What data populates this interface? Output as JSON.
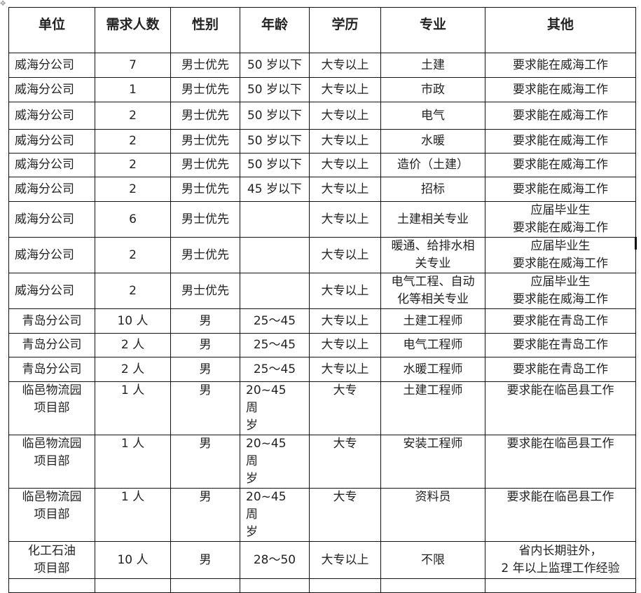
{
  "table": {
    "headers": [
      "单位",
      "需求人数",
      "性别",
      "年龄",
      "学历",
      "专业",
      "其他"
    ],
    "rows": [
      [
        "威海分公司",
        "7",
        "男士优先",
        "50 岁以下",
        "大专以上",
        "土建",
        "要求能在威海工作"
      ],
      [
        "威海分公司",
        "1",
        "男士优先",
        "50 岁以下",
        "大专以上",
        "市政",
        "要求能在威海工作"
      ],
      [
        "威海分公司",
        "2",
        "男士优先",
        "50 岁以下",
        "大专以上",
        "电气",
        "要求能在威海工作"
      ],
      [
        "威海分公司",
        "2",
        "男士优先",
        "50 岁以下",
        "大专以上",
        "水暖",
        "要求能在威海工作"
      ],
      [
        "威海分公司",
        "2",
        "男士优先",
        "50 岁以下",
        "大专以上",
        "造价（土建）",
        "要求能在威海工作"
      ],
      [
        "威海分公司",
        "2",
        "男士优先",
        "45 岁以下",
        "大专以上",
        "招标",
        "要求能在威海工作"
      ],
      [
        "威海分公司",
        "6",
        "男士优先",
        "",
        "大专以上",
        "土建相关专业",
        "应届毕业生\n要求能在威海工作"
      ],
      [
        "威海分公司",
        "2",
        "男士优先",
        "",
        "大专以上",
        "暖通、给排水相\n关专业",
        "应届毕业生\n要求能在威海工作"
      ],
      [
        "威海分公司",
        "2",
        "男士优先",
        "",
        "大专以上",
        "电气工程、自动\n化等相关专业",
        "应届毕业生\n要求能在威海工作"
      ],
      [
        "青岛分公司",
        "10 人",
        "男",
        "25～45",
        "大专以上",
        "土建工程师",
        "要求能在青岛工作"
      ],
      [
        "青岛分公司",
        "2 人",
        "男",
        "25～45",
        "大专以上",
        "电气工程师",
        "要求能在青岛工作"
      ],
      [
        "青岛分公司",
        "2 人",
        "男",
        "25～45",
        "大专以上",
        "水暖工程师",
        "要求能在青岛工作"
      ],
      [
        "临邑物流园\n项目部",
        "1 人",
        "男",
        "20~45　周\n岁",
        "大专",
        "土建工程师",
        "要求能在临邑县工作"
      ],
      [
        "临邑物流园\n项目部",
        "1 人",
        "男",
        "20~45　周\n岁",
        "大专",
        "安装工程师",
        "要求能在临邑县工作"
      ],
      [
        "临邑物流园\n项目部",
        "1 人",
        "男",
        "20~45　周\n岁",
        "大专",
        "资料员",
        "要求能在临邑县工作"
      ],
      [
        "化工石油\n项目部",
        "10 人",
        "男",
        "28～50",
        "大专以上",
        "不限",
        "省内长期驻外，\n2 年以上监理工作经验"
      ],
      [
        "",
        "",
        "",
        "",
        "",
        "",
        ""
      ]
    ]
  }
}
